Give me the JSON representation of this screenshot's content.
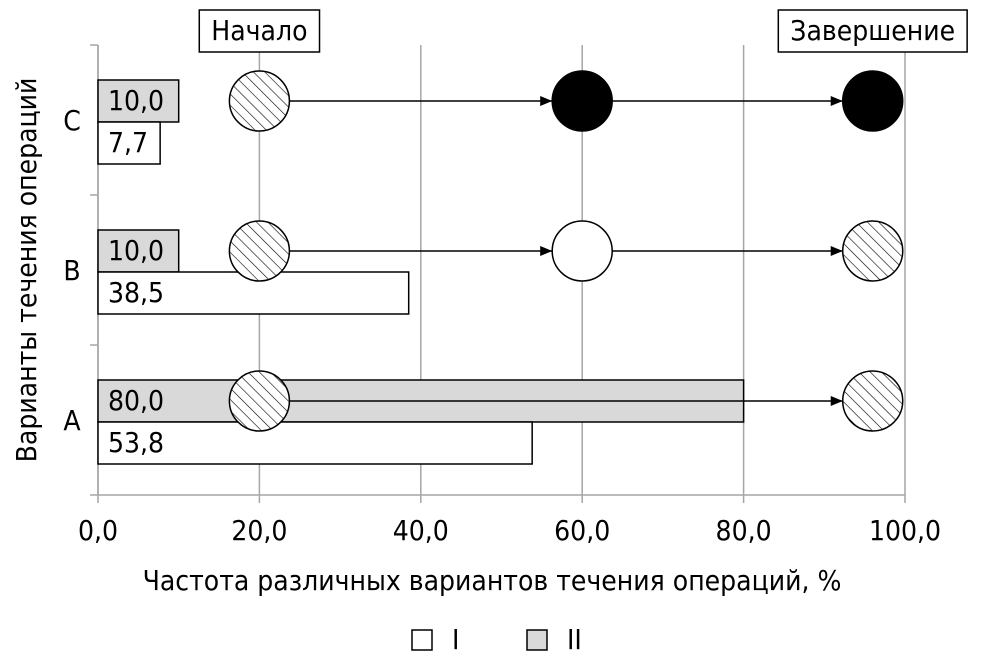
{
  "chart_data": {
    "type": "bar",
    "orientation": "horizontal",
    "x_label": "Частота различных вариантов течения операций, %",
    "y_label": "Варианты течения операций",
    "categories": [
      "A",
      "B",
      "C"
    ],
    "series": [
      {
        "name": "I",
        "color": "#ffffff",
        "values": [
          53.8,
          38.5,
          7.7
        ],
        "value_labels": [
          "53,8",
          "38,5",
          "7,7"
        ]
      },
      {
        "name": "II",
        "color": "#d9d9d9",
        "values": [
          80.0,
          10.0,
          10.0
        ],
        "value_labels": [
          "80,0",
          "10,0",
          "10,0"
        ]
      }
    ],
    "xlim": [
      0,
      100
    ],
    "xticks": [
      {
        "value": 0,
        "label": "0,0"
      },
      {
        "value": 20,
        "label": "20,0"
      },
      {
        "value": 40,
        "label": "40,0"
      },
      {
        "value": 60,
        "label": "60,0"
      },
      {
        "value": 80,
        "label": "80,0"
      },
      {
        "value": 100,
        "label": "100,0"
      }
    ],
    "grid": true,
    "annotations": [
      {
        "text": "Начало",
        "x": 20
      },
      {
        "text": "Завершение",
        "x": 96
      }
    ],
    "flows": [
      [
        {
          "x": 20,
          "fill": "hatch"
        },
        {
          "x": 96,
          "fill": "hatch"
        }
      ],
      [
        {
          "x": 20,
          "fill": "hatch"
        },
        {
          "x": 60,
          "fill": "white"
        },
        {
          "x": 96,
          "fill": "hatch"
        }
      ],
      [
        {
          "x": 20,
          "fill": "hatch"
        },
        {
          "x": 60,
          "fill": "black"
        },
        {
          "x": 96,
          "fill": "black"
        }
      ]
    ]
  }
}
